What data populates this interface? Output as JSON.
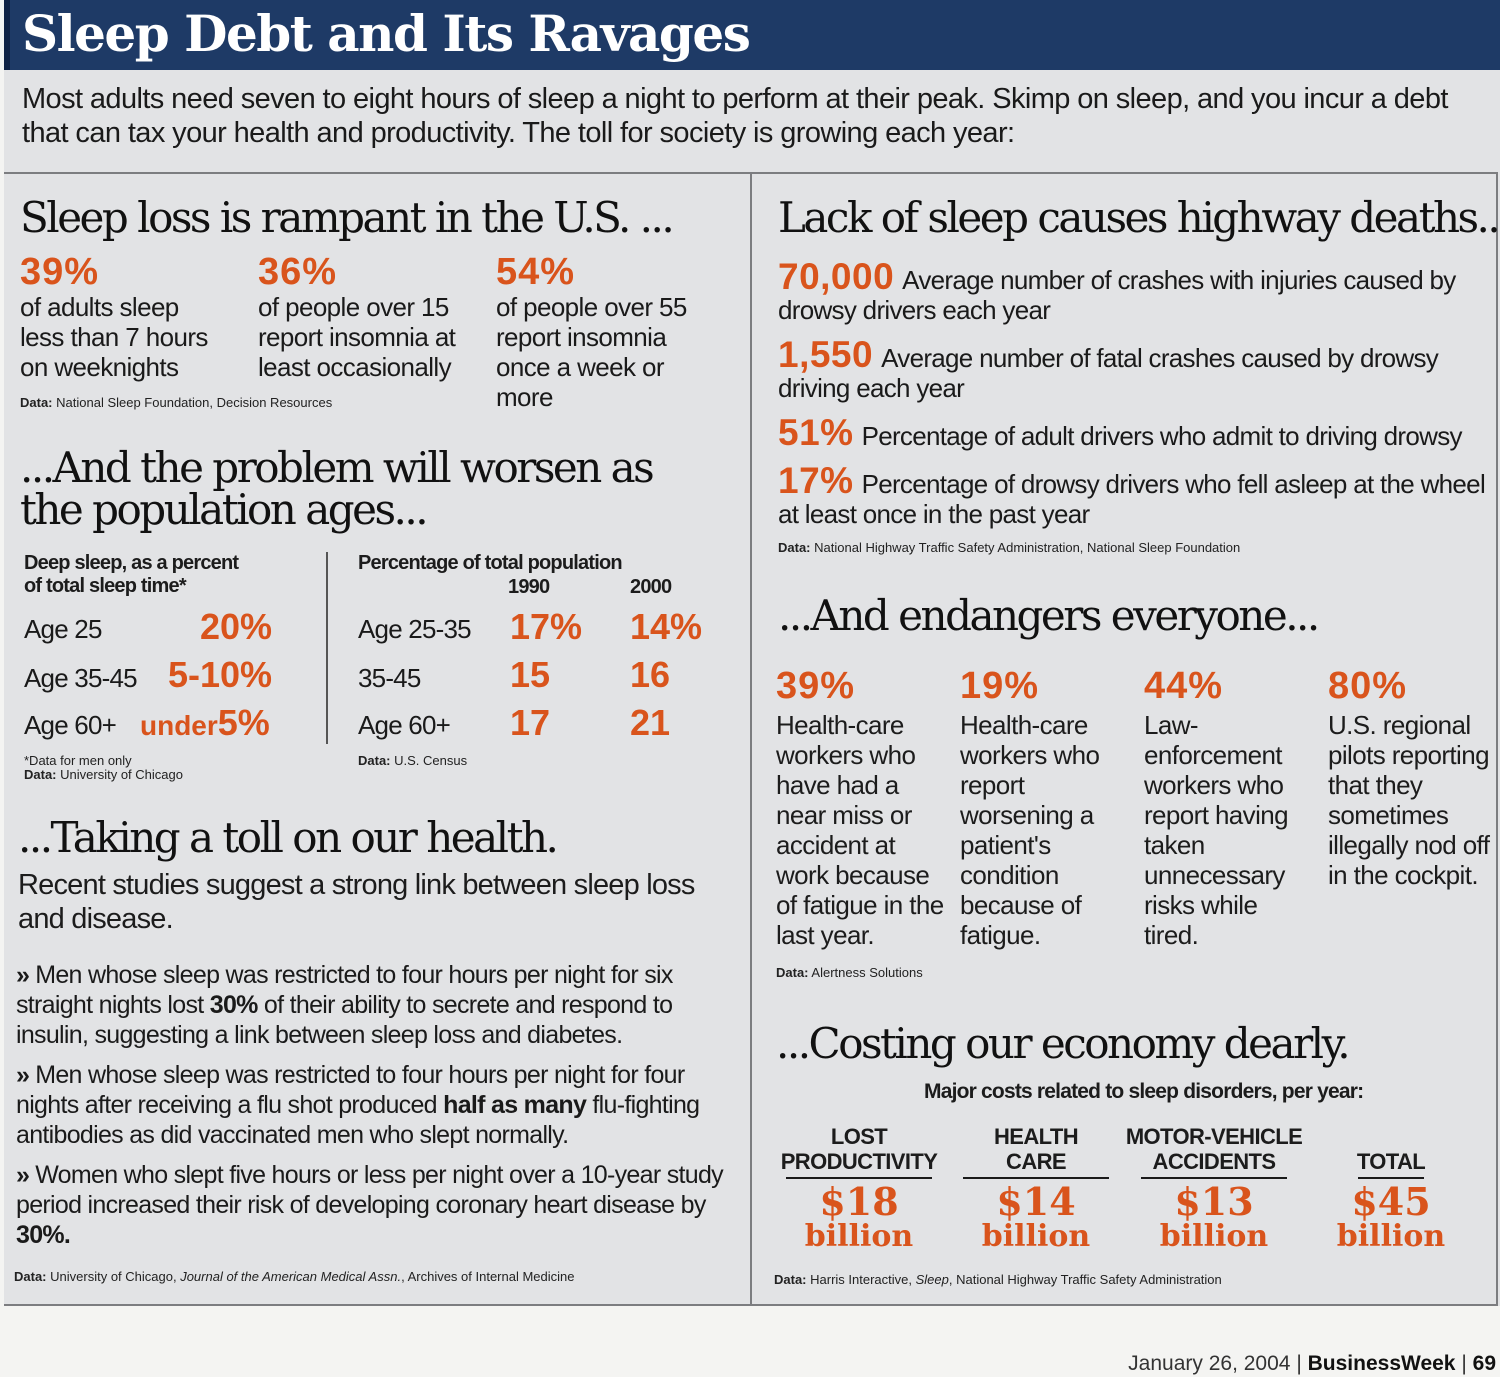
{
  "title": "Sleep Debt and Its Ravages",
  "intro": "Most adults need seven to eight hours of sleep a night to perform at their peak. Skimp on sleep, and you incur a debt that can tax your health and productivity. The toll for society is growing each year:",
  "rampant": {
    "heading": "Sleep loss is rampant in the U.S. ...",
    "stats": [
      {
        "value": "39%",
        "desc": "of adults sleep less than 7 hours on weeknights"
      },
      {
        "value": "36%",
        "desc": "of people over 15 report insomnia at least occasionally"
      },
      {
        "value": "54%",
        "desc": "of people over 55 report insomnia once a week or more"
      }
    ],
    "source_label": "Data:",
    "source": "National Sleep Foundation, Decision Resources"
  },
  "worsen": {
    "heading_line1": "...And the problem will worsen as",
    "heading_line2": "the population ages...",
    "deep_head_line1": "Deep sleep, as a percent",
    "deep_head_line2": "of total sleep time*",
    "deep_rows": [
      {
        "label": "Age 25",
        "value": "20%"
      },
      {
        "label": "Age 35-45",
        "value": "5-10%"
      },
      {
        "label": "Age 60+",
        "prefix": "under",
        "value": "5%"
      }
    ],
    "pop_head": "Percentage of total population",
    "pop_years": [
      "1990",
      "2000"
    ],
    "pop_rows": [
      {
        "label": "Age 25-35",
        "v1990": "17%",
        "v2000": "14%"
      },
      {
        "label": "35-45",
        "v1990": "15",
        "v2000": "16"
      },
      {
        "label": "Age 60+",
        "v1990": "17",
        "v2000": "21"
      }
    ],
    "footnote": "*Data for men only",
    "source_label": "Data:",
    "source_left": "University of Chicago",
    "source_right": "U.S. Census"
  },
  "health": {
    "heading": "...Taking a toll on our health.",
    "lead": "Recent studies suggest a strong link between sleep loss and disease.",
    "bullets": [
      {
        "arrow": "»",
        "pre": "Men whose sleep was restricted to four hours per night for six straight nights lost ",
        "bold": "30%",
        "post": " of their ability to secrete and respond to insulin, suggesting a link between sleep loss and diabetes."
      },
      {
        "arrow": "»",
        "pre": "Men whose sleep was restricted to four hours per night for four nights after receiving a flu shot produced ",
        "bold": "half as many",
        "post": " flu-fighting antibodies as did vaccinated men who slept normally."
      },
      {
        "arrow": "»",
        "pre": "Women who slept five hours or less per night over a 10-year study period increased their risk of developing coronary heart disease by ",
        "bold": "30%.",
        "post": ""
      }
    ],
    "source_label": "Data:",
    "source_a": "University of Chicago, ",
    "source_b": "Journal of the American Medical Assn.",
    "source_c": ", Archives of Internal Medicine"
  },
  "highway": {
    "heading": "Lack of sleep causes highway deaths...",
    "rows": [
      {
        "value": "70,000",
        "desc": "Average number of crashes with injuries caused by drowsy drivers each year"
      },
      {
        "value": "1,550",
        "desc": "Average number of fatal crashes caused by drowsy driving each year"
      },
      {
        "value": "51%",
        "desc": "Percentage of adult drivers who admit to driving drowsy"
      },
      {
        "value": "17%",
        "desc": "Percentage of drowsy drivers who fell asleep at the wheel at least once in the past year"
      }
    ],
    "source_label": "Data:",
    "source": "National Highway Traffic Safety Administration, National Sleep Foundation"
  },
  "endangers": {
    "heading": "...And endangers everyone...",
    "stats": [
      {
        "value": "39%",
        "desc": "Health-care workers who have had a near miss or accident at work because of fatigue in the last year."
      },
      {
        "value": "19%",
        "desc": "Health-care workers who report worsening a patient's condition because of fatigue."
      },
      {
        "value": "44%",
        "desc": "Law-enforcement workers who report having taken unnecessary risks while tired."
      },
      {
        "value": "80%",
        "desc": "U.S. regional pilots reporting that they sometimes illegally nod off in the cockpit."
      }
    ],
    "source_label": "Data:",
    "source": "Alertness Solutions"
  },
  "economy": {
    "heading": "...Costing our economy dearly.",
    "subhead": "Major costs related to sleep disorders, per year:",
    "costs": [
      {
        "label_line1": "LOST",
        "label_line2": "PRODUCTIVITY",
        "amount": "$18",
        "unit": "billion"
      },
      {
        "label_line1": "HEALTH",
        "label_line2": "CARE",
        "amount": "$14",
        "unit": "billion"
      },
      {
        "label_line1": "MOTOR-VEHICLE",
        "label_line2": "ACCIDENTS",
        "amount": "$13",
        "unit": "billion"
      },
      {
        "label_line1": "",
        "label_line2": "TOTAL",
        "amount": "$45",
        "unit": "billion"
      }
    ],
    "source_label": "Data:",
    "source_a": "Harris Interactive, ",
    "source_b": "Sleep",
    "source_c": ", National Highway Traffic Safety Administration"
  },
  "footer": {
    "date": "January 26, 2004",
    "sep": "|",
    "brand": "BusinessWeek",
    "page": "69"
  },
  "colors": {
    "accent": "#d9541c",
    "title_bar": "#1e3a66",
    "panel": "#e2e3e5"
  }
}
